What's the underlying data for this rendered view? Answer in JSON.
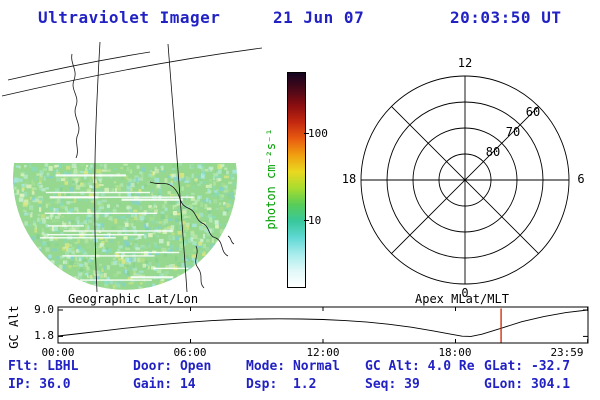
{
  "header": {
    "title": "Ultraviolet Imager",
    "date": "21 Jun 07",
    "time": "20:03:50 UT"
  },
  "map_panel": {
    "title": "Geographic Lat/Lon"
  },
  "polar_panel": {
    "title": "Apex MLat/MLT",
    "mlt_top": "12",
    "mlt_left": "18",
    "mlt_right": "6",
    "mlt_bottom": "0",
    "ring_outer": "60",
    "ring_mid": "70",
    "ring_inner": "80"
  },
  "colorbar": {
    "unit_label": "photon cm⁻²s⁻¹",
    "tick_labels": [
      "100",
      "10"
    ]
  },
  "timeline": {
    "ylabel": "GC Alt",
    "ytick_labels": [
      "9.0",
      "1.8"
    ],
    "xtick_labels": [
      "00:00",
      "06:00",
      "12:00",
      "18:00",
      "23:59"
    ]
  },
  "status": {
    "row1": [
      "Flt: LBHL",
      "Door: Open",
      "Mode: Normal",
      "GC Alt: 4.0 Re",
      "GLat: -32.7"
    ],
    "row2": [
      "IP: 36.0",
      "Gain: 14",
      "Dsp:  1.2",
      "Seq: 39",
      "GLon: 304.1"
    ]
  },
  "chart_data": [
    {
      "type": "heatmap",
      "name": "uv-image",
      "title": "Ultraviolet Imager",
      "projection": "Geographic Lat/Lon",
      "intensity_unit": "photon cm⁻²s⁻¹",
      "colorbar_scale": "log",
      "colorbar_ticks": [
        10,
        100
      ],
      "palette_top_to_bottom": [
        "#140420",
        "#4a0818",
        "#8c0e10",
        "#c42810",
        "#e85c10",
        "#f0a010",
        "#ead820",
        "#a8dc30",
        "#58cc58",
        "#38c89c",
        "#60d8d4",
        "#a8ecec",
        "#e0f8f8",
        "#ffffff"
      ]
    },
    {
      "type": "line",
      "name": "gc-altitude-vs-time",
      "ylabel": "GC Alt",
      "yticks": [
        9.0,
        1.8
      ],
      "xticks_hours": [
        0,
        6,
        12,
        18,
        23.983
      ],
      "xtick_labels": [
        "00:00",
        "06:00",
        "12:00",
        "18:00",
        "23:59"
      ],
      "x_hours": [
        0,
        1,
        2,
        3,
        4,
        5,
        6,
        7,
        8,
        9,
        10,
        11,
        12,
        13,
        14,
        15,
        16,
        17,
        17.7,
        18.3,
        18.7,
        19.2,
        20.06,
        21,
        22,
        23,
        23.98
      ],
      "y_re": [
        1.9,
        2.6,
        3.3,
        4.0,
        4.6,
        5.2,
        5.7,
        6.1,
        6.4,
        6.55,
        6.6,
        6.55,
        6.4,
        6.1,
        5.7,
        5.1,
        4.3,
        3.3,
        2.5,
        1.85,
        1.8,
        2.4,
        4.0,
        5.8,
        7.2,
        8.3,
        9.0
      ],
      "current_time_hours": 20.064,
      "current_time_alt_re": 4.0,
      "marker_color": "#cc2200"
    }
  ]
}
